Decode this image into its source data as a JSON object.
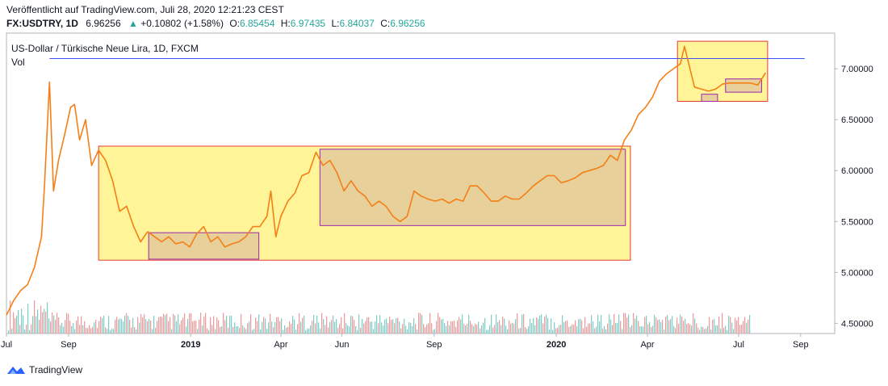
{
  "header": {
    "published": "Veröffentlicht auf TradingView.com, Juli 28, 2020 12:21:23 CEST",
    "symbol": "FX:USDTRY, 1D",
    "last": "6.96256",
    "change": "+0.10802 (+1.58%)",
    "o_label": "O:",
    "o_val": "6.85454",
    "h_label": "H:",
    "h_val": "6.97435",
    "l_label": "L:",
    "l_val": "6.84037",
    "c_label": "C:",
    "c_val": "6.96256"
  },
  "legend": {
    "title": "US-Dollar / Türkische Neue Lira, 1D, FXCM",
    "vol": "Vol"
  },
  "footer": {
    "brand": "TradingView"
  },
  "colors": {
    "price_line": "#f57f17",
    "hline": "#3f51f5",
    "yellow_fill": "#fff176",
    "yellow_stroke": "#e53935",
    "purple_fill": "#e1c79a",
    "purple_stroke": "#9c27b0",
    "vol_up": "#80cbc4",
    "vol_down": "#ef9a9a",
    "axis_text": "#131722"
  },
  "chart_data": {
    "type": "line",
    "series": [
      {
        "values": [
          [
            "2018-07-01",
            4.58
          ],
          [
            "2018-07-08",
            4.72
          ],
          [
            "2018-07-15",
            4.82
          ],
          [
            "2018-07-22",
            4.88
          ],
          [
            "2018-07-29",
            5.05
          ],
          [
            "2018-08-05",
            5.35
          ],
          [
            "2018-08-08",
            5.85
          ],
          [
            "2018-08-13",
            6.87
          ],
          [
            "2018-08-17",
            5.8
          ],
          [
            "2018-08-22",
            6.1
          ],
          [
            "2018-08-28",
            6.35
          ],
          [
            "2018-09-03",
            6.62
          ],
          [
            "2018-09-07",
            6.65
          ],
          [
            "2018-09-12",
            6.3
          ],
          [
            "2018-09-18",
            6.5
          ],
          [
            "2018-09-24",
            6.05
          ],
          [
            "2018-10-01",
            6.2
          ],
          [
            "2018-10-08",
            6.1
          ],
          [
            "2018-10-15",
            5.9
          ],
          [
            "2018-10-22",
            5.6
          ],
          [
            "2018-10-29",
            5.65
          ],
          [
            "2018-11-05",
            5.45
          ],
          [
            "2018-11-12",
            5.3
          ],
          [
            "2018-11-19",
            5.4
          ],
          [
            "2018-11-26",
            5.35
          ],
          [
            "2018-12-03",
            5.3
          ],
          [
            "2018-12-10",
            5.35
          ],
          [
            "2018-12-17",
            5.28
          ],
          [
            "2018-12-24",
            5.3
          ],
          [
            "2018-12-31",
            5.25
          ],
          [
            "2019-01-07",
            5.38
          ],
          [
            "2019-01-14",
            5.45
          ],
          [
            "2019-01-21",
            5.3
          ],
          [
            "2019-01-28",
            5.35
          ],
          [
            "2019-02-04",
            5.25
          ],
          [
            "2019-02-11",
            5.28
          ],
          [
            "2019-02-18",
            5.3
          ],
          [
            "2019-02-25",
            5.35
          ],
          [
            "2019-03-04",
            5.45
          ],
          [
            "2019-03-11",
            5.45
          ],
          [
            "2019-03-18",
            5.55
          ],
          [
            "2019-03-22",
            5.8
          ],
          [
            "2019-03-27",
            5.35
          ],
          [
            "2019-04-01",
            5.55
          ],
          [
            "2019-04-08",
            5.7
          ],
          [
            "2019-04-15",
            5.78
          ],
          [
            "2019-04-22",
            5.95
          ],
          [
            "2019-04-29",
            5.98
          ],
          [
            "2019-05-06",
            6.18
          ],
          [
            "2019-05-13",
            6.05
          ],
          [
            "2019-05-20",
            6.1
          ],
          [
            "2019-05-27",
            5.98
          ],
          [
            "2019-06-03",
            5.8
          ],
          [
            "2019-06-10",
            5.9
          ],
          [
            "2019-06-17",
            5.8
          ],
          [
            "2019-06-24",
            5.75
          ],
          [
            "2019-07-01",
            5.65
          ],
          [
            "2019-07-08",
            5.7
          ],
          [
            "2019-07-15",
            5.65
          ],
          [
            "2019-07-22",
            5.55
          ],
          [
            "2019-07-29",
            5.5
          ],
          [
            "2019-08-05",
            5.55
          ],
          [
            "2019-08-12",
            5.8
          ],
          [
            "2019-08-19",
            5.75
          ],
          [
            "2019-08-26",
            5.72
          ],
          [
            "2019-09-02",
            5.7
          ],
          [
            "2019-09-09",
            5.72
          ],
          [
            "2019-09-16",
            5.68
          ],
          [
            "2019-09-23",
            5.72
          ],
          [
            "2019-09-30",
            5.7
          ],
          [
            "2019-10-07",
            5.85
          ],
          [
            "2019-10-14",
            5.85
          ],
          [
            "2019-10-21",
            5.78
          ],
          [
            "2019-10-28",
            5.7
          ],
          [
            "2019-11-04",
            5.7
          ],
          [
            "2019-11-11",
            5.75
          ],
          [
            "2019-11-18",
            5.72
          ],
          [
            "2019-11-25",
            5.72
          ],
          [
            "2019-12-02",
            5.78
          ],
          [
            "2019-12-09",
            5.85
          ],
          [
            "2019-12-16",
            5.9
          ],
          [
            "2019-12-23",
            5.95
          ],
          [
            "2019-12-30",
            5.95
          ],
          [
            "2020-01-06",
            5.88
          ],
          [
            "2020-01-13",
            5.9
          ],
          [
            "2020-01-20",
            5.93
          ],
          [
            "2020-01-27",
            5.98
          ],
          [
            "2020-02-03",
            6.0
          ],
          [
            "2020-02-10",
            6.02
          ],
          [
            "2020-02-17",
            6.05
          ],
          [
            "2020-02-24",
            6.15
          ],
          [
            "2020-03-02",
            6.1
          ],
          [
            "2020-03-09",
            6.3
          ],
          [
            "2020-03-16",
            6.4
          ],
          [
            "2020-03-23",
            6.55
          ],
          [
            "2020-03-30",
            6.62
          ],
          [
            "2020-04-06",
            6.72
          ],
          [
            "2020-04-13",
            6.88
          ],
          [
            "2020-04-20",
            6.95
          ],
          [
            "2020-04-27",
            7.0
          ],
          [
            "2020-05-04",
            7.05
          ],
          [
            "2020-05-08",
            7.22
          ],
          [
            "2020-05-13",
            7.02
          ],
          [
            "2020-05-18",
            6.82
          ],
          [
            "2020-05-25",
            6.8
          ],
          [
            "2020-06-01",
            6.78
          ],
          [
            "2020-06-08",
            6.8
          ],
          [
            "2020-06-15",
            6.85
          ],
          [
            "2020-06-22",
            6.86
          ],
          [
            "2020-06-29",
            6.86
          ],
          [
            "2020-07-06",
            6.86
          ],
          [
            "2020-07-13",
            6.86
          ],
          [
            "2020-07-20",
            6.84
          ],
          [
            "2020-07-28",
            6.96
          ]
        ]
      }
    ],
    "y_ticks": [
      "4.50000",
      "5.00000",
      "5.50000",
      "6.00000",
      "6.50000",
      "7.00000"
    ],
    "ylim": [
      4.4,
      7.35
    ],
    "x_ticks": [
      {
        "label": "Jul",
        "date": "2018-07-01",
        "bold": false
      },
      {
        "label": "Sep",
        "date": "2018-09-01",
        "bold": false
      },
      {
        "label": "2019",
        "date": "2019-01-01",
        "bold": true
      },
      {
        "label": "Apr",
        "date": "2019-04-01",
        "bold": false
      },
      {
        "label": "Jun",
        "date": "2019-06-01",
        "bold": false
      },
      {
        "label": "Sep",
        "date": "2019-09-01",
        "bold": false
      },
      {
        "label": "2020",
        "date": "2020-01-01",
        "bold": true
      },
      {
        "label": "Apr",
        "date": "2020-04-01",
        "bold": false
      },
      {
        "label": "Jul",
        "date": "2020-07-01",
        "bold": false
      },
      {
        "label": "Sep",
        "date": "2020-09-01",
        "bold": false
      }
    ],
    "xlim": [
      "2018-07-01",
      "2020-10-05"
    ],
    "horizontal_line": {
      "value": 7.1,
      "from": "2018-08-13",
      "to": "2020-09-05"
    },
    "boxes": [
      {
        "kind": "yellow",
        "x0": "2018-10-01",
        "x1": "2020-03-15",
        "y0": 5.12,
        "y1": 6.24
      },
      {
        "kind": "purple",
        "x0": "2018-11-20",
        "x1": "2019-03-10",
        "y0": 5.13,
        "y1": 5.39
      },
      {
        "kind": "purple",
        "x0": "2019-05-10",
        "x1": "2020-03-10",
        "y0": 5.46,
        "y1": 6.21
      },
      {
        "kind": "yellow",
        "x0": "2020-05-01",
        "x1": "2020-07-30",
        "y0": 6.68,
        "y1": 7.27
      },
      {
        "kind": "purple",
        "x0": "2020-05-25",
        "x1": "2020-06-10",
        "y0": 6.68,
        "y1": 6.75
      },
      {
        "kind": "purple",
        "x0": "2020-06-18",
        "x1": "2020-07-24",
        "y0": 6.77,
        "y1": 6.9
      }
    ]
  }
}
